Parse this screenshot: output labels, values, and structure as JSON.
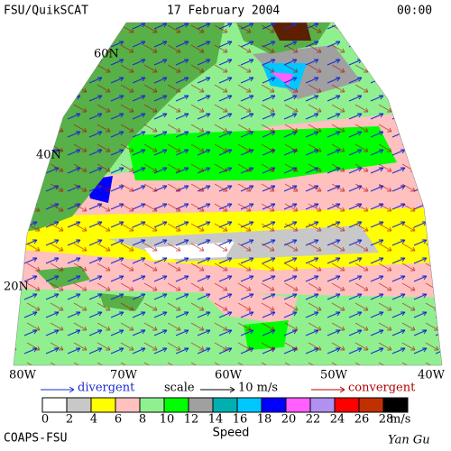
{
  "header": {
    "source": "FSU/QuikSCAT",
    "date": "17 February 2004",
    "time": "00:00"
  },
  "map": {
    "lat_labels": [
      "60N",
      "40N",
      "20N"
    ],
    "lon_labels": [
      "80W",
      "70W",
      "60W",
      "50W",
      "40W"
    ]
  },
  "legend": {
    "divergent": "divergent",
    "scale": "scale",
    "scale_value": "10 m/s",
    "convergent": "convergent"
  },
  "colorbar": {
    "label": "Speed",
    "unit": "m/s",
    "ticks": [
      0,
      2,
      4,
      6,
      8,
      10,
      12,
      14,
      16,
      18,
      20,
      22,
      24,
      26,
      28
    ],
    "colors": [
      "#ffffff",
      "#c8c8c8",
      "#ffff00",
      "#ffc0c0",
      "#90f090",
      "#00ff00",
      "#a0a0a0",
      "#00b0b0",
      "#00c8ff",
      "#0000ff",
      "#ff60ff",
      "#b090f0",
      "#ff0000",
      "#c03000",
      "#000000"
    ]
  },
  "footer": {
    "credit": "COAPS-FSU",
    "author": "Yan Gu"
  }
}
